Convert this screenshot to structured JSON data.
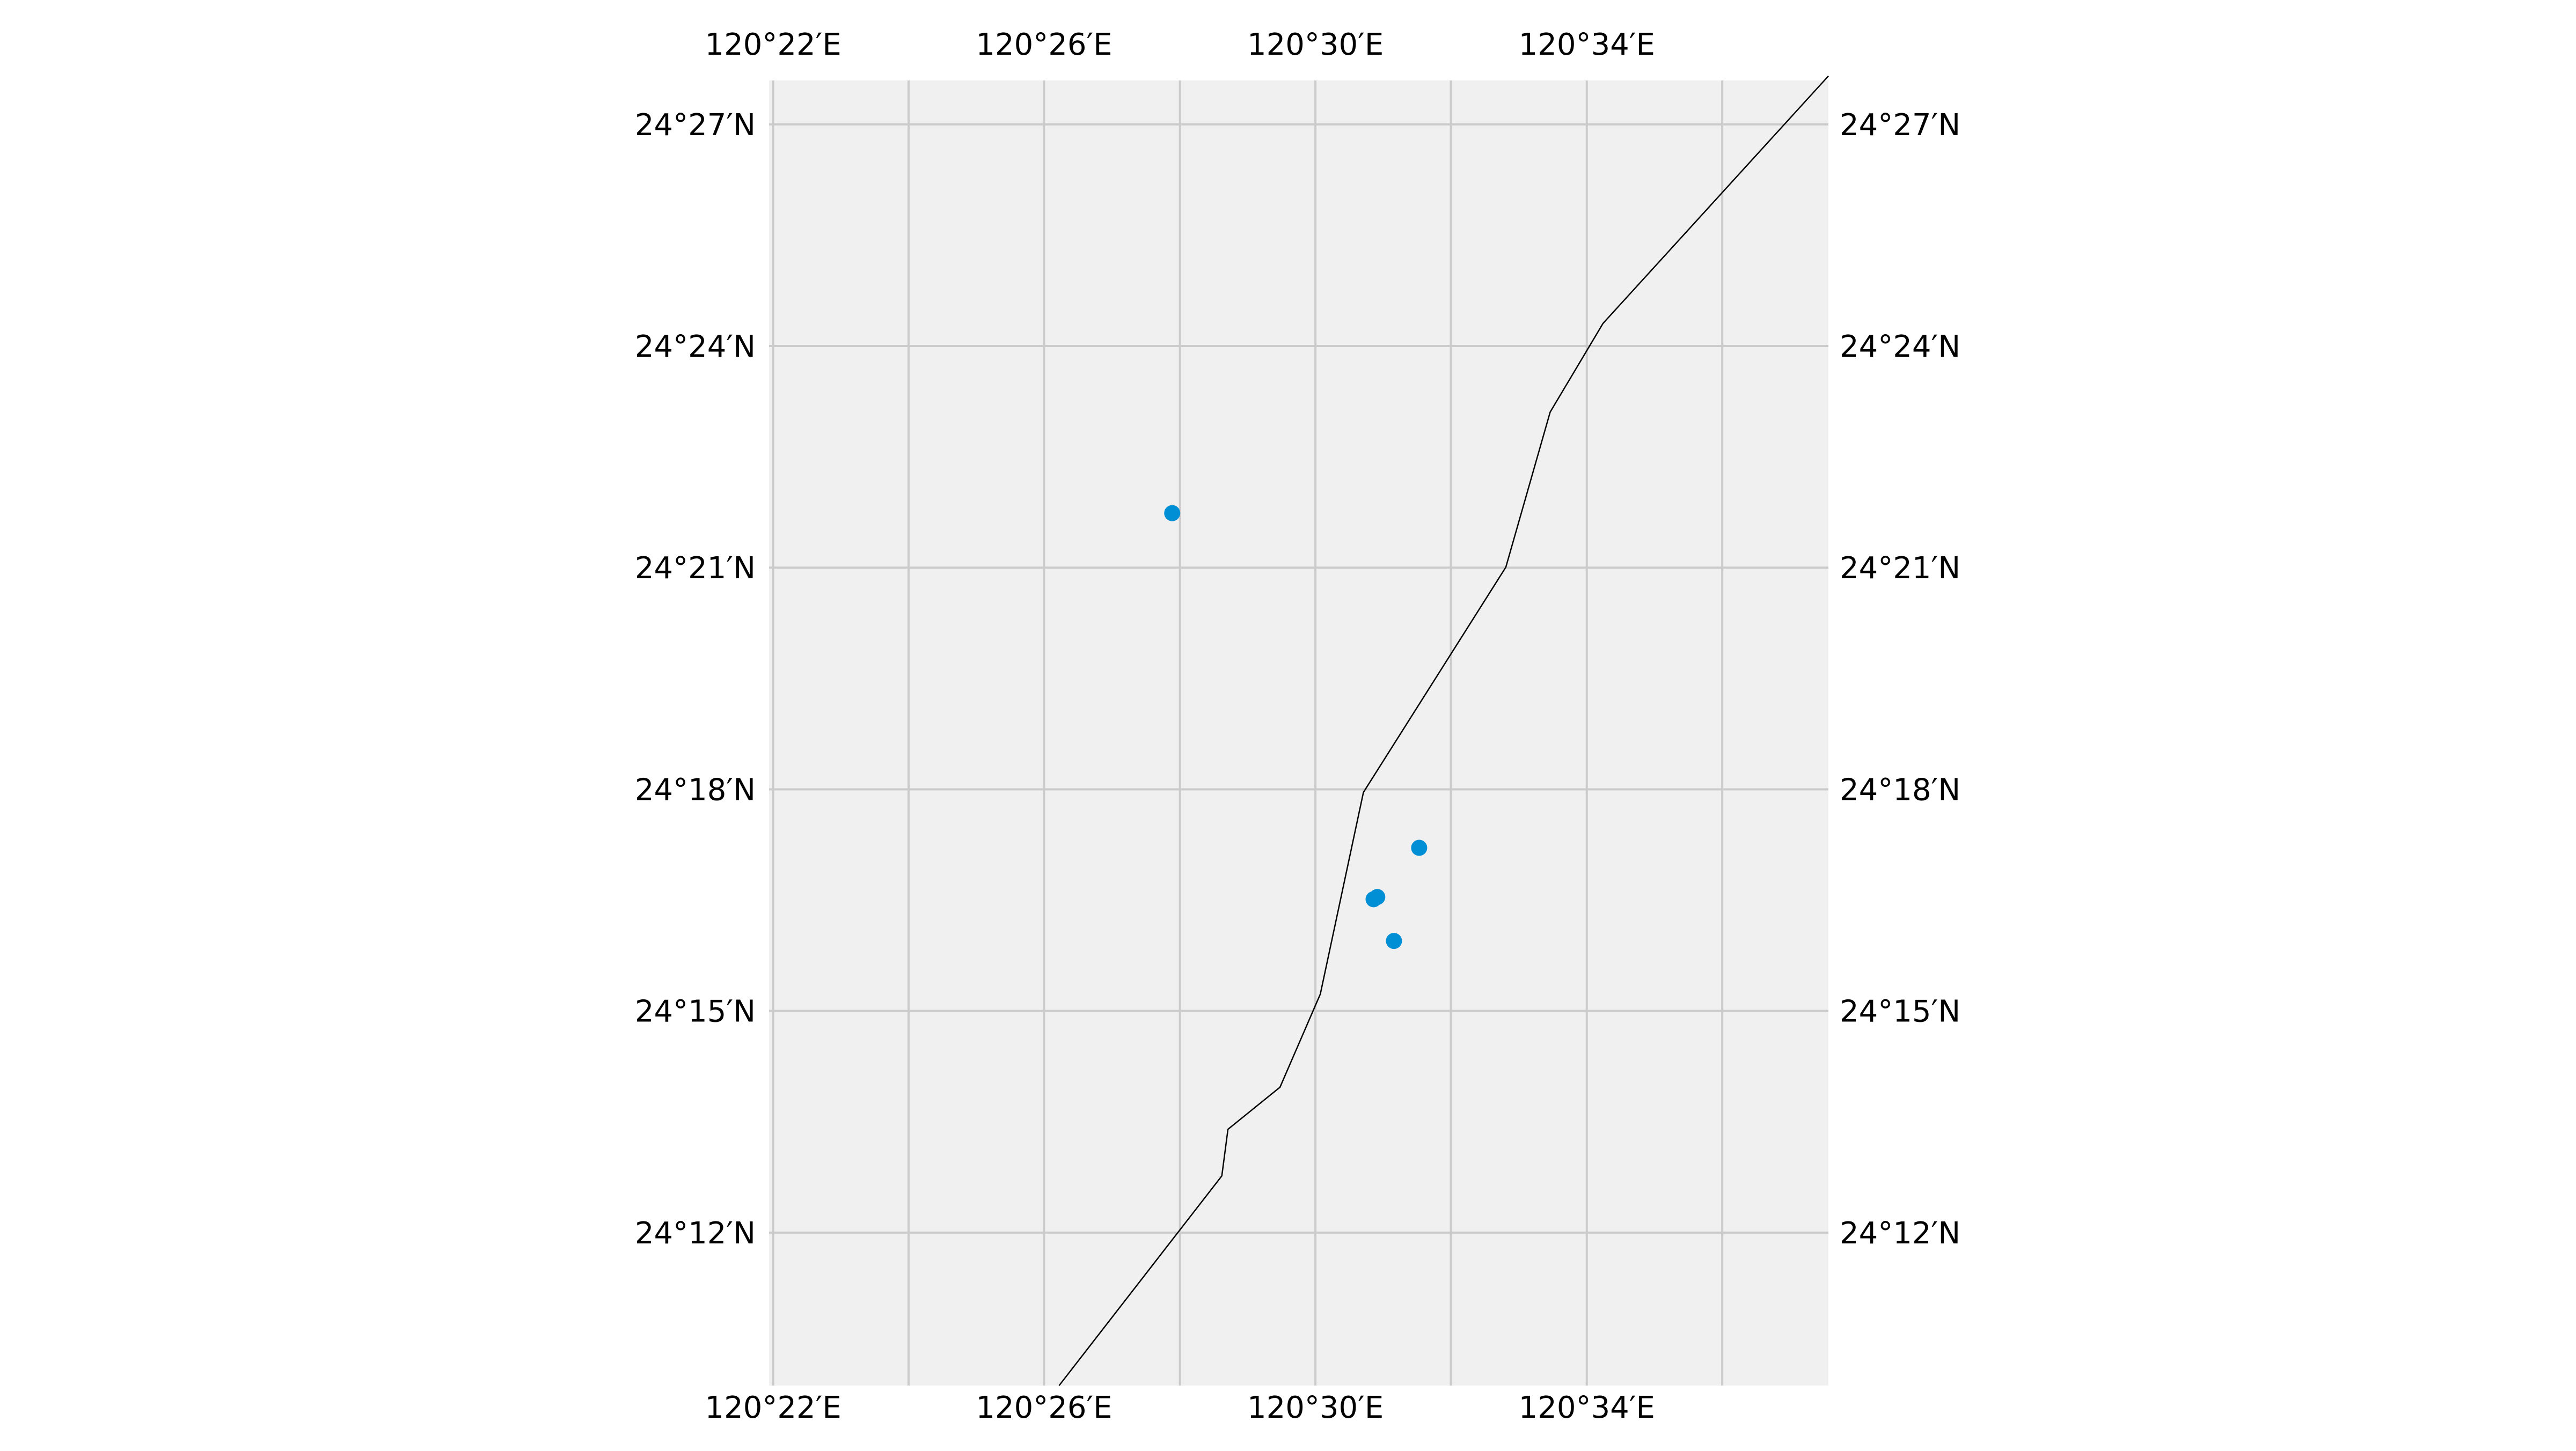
{
  "map": {
    "lon_ticks": [
      {
        "label": "120°22′E",
        "value": 120.3667
      },
      {
        "label": "120°26′E",
        "value": 120.4333
      },
      {
        "label": "120°30′E",
        "value": 120.5
      },
      {
        "label": "120°34′E",
        "value": 120.5667
      }
    ],
    "lat_ticks": [
      {
        "label": "24°27′N",
        "value": 24.45
      },
      {
        "label": "24°24′N",
        "value": 24.4
      },
      {
        "label": "24°21′N",
        "value": 24.35
      },
      {
        "label": "24°18′N",
        "value": 24.3
      },
      {
        "label": "24°15′N",
        "value": 24.25
      },
      {
        "label": "24°12′N",
        "value": 24.2
      }
    ],
    "gridline_lons": [
      120.3667,
      120.4,
      120.4333,
      120.4667,
      120.5,
      120.5333,
      120.5667,
      120.6
    ],
    "gridline_lats": [
      24.45,
      24.4,
      24.35,
      24.3,
      24.25,
      24.2
    ],
    "extent": {
      "lon_min": 120.3657,
      "lon_max": 120.6261,
      "lat_min": 24.1655,
      "lat_max": 24.4599
    },
    "coastline": [
      [
        120.437,
        24.1655
      ],
      [
        120.477,
        24.2128
      ],
      [
        120.4785,
        24.2233
      ],
      [
        120.4913,
        24.2328
      ],
      [
        120.5012,
        24.2538
      ],
      [
        120.5118,
        24.2993
      ],
      [
        120.5468,
        24.3501
      ],
      [
        120.5577,
        24.3851
      ],
      [
        120.5707,
        24.4051
      ],
      [
        120.6261,
        24.4609
      ]
    ],
    "points": [
      {
        "lon": 120.4648,
        "lat": 24.3623
      },
      {
        "lon": 120.5255,
        "lat": 24.2868
      },
      {
        "lon": 120.5143,
        "lat": 24.2752
      },
      {
        "lon": 120.5152,
        "lat": 24.2757
      },
      {
        "lon": 120.5193,
        "lat": 24.2658
      }
    ],
    "colors": {
      "background": "#f0f0f0",
      "grid": "#cbcbcb",
      "coastline": "#000000",
      "points": "#008fd5"
    }
  }
}
